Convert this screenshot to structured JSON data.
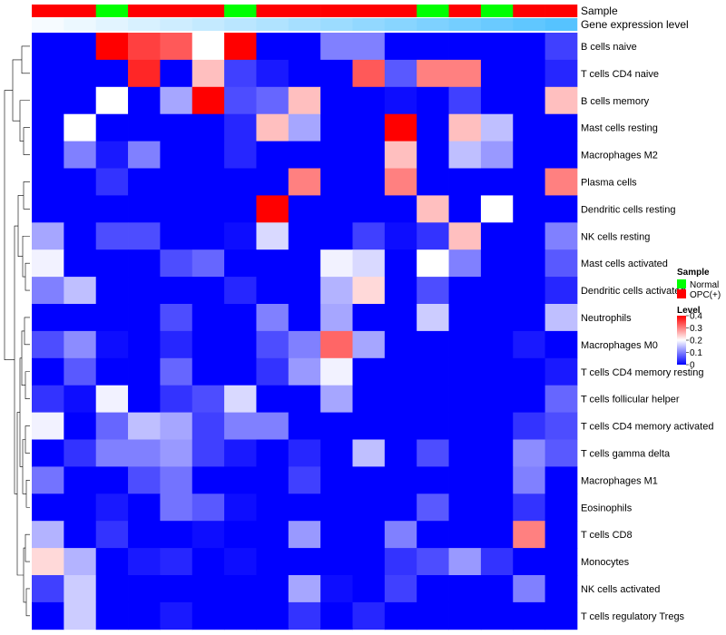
{
  "chart_data": {
    "type": "heatmap",
    "title": "",
    "annotation_labels": {
      "sample": "Sample",
      "gene_expression": "Gene expression level"
    },
    "sample_groups": [
      "OPC(+)",
      "OPC(+)",
      "Normal",
      "OPC(+)",
      "OPC(+)",
      "OPC(+)",
      "Normal",
      "OPC(+)",
      "OPC(+)",
      "OPC(+)",
      "OPC(+)",
      "OPC(+)",
      "Normal",
      "OPC(+)",
      "Normal",
      "OPC(+)",
      "OPC(+)"
    ],
    "gene_expression_level": [
      0.05,
      0.1,
      0.15,
      0.2,
      0.25,
      0.3,
      0.35,
      0.4,
      0.45,
      0.5,
      0.55,
      0.6,
      0.65,
      0.7,
      0.75,
      0.8,
      0.85
    ],
    "rows": [
      "B cells naive",
      "T cells CD4 naive",
      "B cells memory",
      "Mast cells resting",
      "Macrophages M2",
      "Plasma cells",
      "Dendritic cells resting",
      "NK cells resting",
      "Mast cells activated",
      "Dendritic cells activated",
      "Neutrophils",
      "Macrophages M0",
      "T cells CD4 memory resting",
      "T cells follicular helper",
      "T cells CD4 memory activated",
      "T cells gamma delta",
      "Macrophages M1",
      "Eosinophils",
      "T cells CD8",
      "Monocytes",
      "NK cells activated",
      "T cells regulatory  Tregs"
    ],
    "values": [
      [
        0,
        0,
        0.4,
        0.35,
        0.33,
        0.2,
        0.4,
        0,
        0,
        0.1,
        0.1,
        0,
        0,
        0,
        0,
        0,
        0.05
      ],
      [
        0,
        0,
        0,
        0.37,
        0,
        0.25,
        0.05,
        0.02,
        0,
        0,
        0.33,
        0.07,
        0.3,
        0.3,
        0,
        0,
        0.03
      ],
      [
        0,
        0,
        0.2,
        0,
        0.13,
        0.4,
        0.06,
        0.08,
        0.25,
        0,
        0,
        0.01,
        0,
        0.05,
        0,
        0,
        0.25
      ],
      [
        0,
        0.2,
        0,
        0,
        0,
        0,
        0.03,
        0.25,
        0.13,
        0,
        0,
        0.4,
        0,
        0.25,
        0.15,
        0,
        0
      ],
      [
        0,
        0.1,
        0.02,
        0.1,
        0,
        0,
        0.03,
        0,
        0,
        0,
        0,
        0.25,
        0,
        0.15,
        0.12,
        0,
        0
      ],
      [
        0,
        0,
        0.04,
        0,
        0,
        0,
        0,
        0,
        0.3,
        0,
        0,
        0.3,
        0,
        0,
        0,
        0,
        0.3
      ],
      [
        0,
        0,
        0,
        0,
        0,
        0,
        0,
        0.4,
        0,
        0,
        0,
        0,
        0.25,
        0,
        0.2,
        0,
        0
      ],
      [
        0.13,
        0,
        0.06,
        0.06,
        0,
        0,
        0.01,
        0.17,
        0,
        0,
        0.05,
        0.01,
        0.04,
        0.25,
        0,
        0,
        0.1
      ],
      [
        0.19,
        0,
        0,
        0,
        0.06,
        0.08,
        0,
        0,
        0,
        0.19,
        0.17,
        0,
        0.2,
        0.1,
        0,
        0,
        0.07
      ],
      [
        0.1,
        0.15,
        0,
        0,
        0,
        0,
        0.03,
        0,
        0,
        0.14,
        0.23,
        0,
        0.06,
        0,
        0,
        0,
        0.03
      ],
      [
        0,
        0,
        0,
        0,
        0.06,
        0,
        0,
        0.1,
        0,
        0.13,
        0,
        0,
        0.16,
        0,
        0,
        0,
        0.15
      ],
      [
        0.06,
        0.11,
        0.01,
        0,
        0.03,
        0,
        0,
        0.06,
        0.1,
        0.32,
        0.13,
        0,
        0,
        0,
        0,
        0.02,
        0
      ],
      [
        0,
        0.07,
        0,
        0,
        0.08,
        0,
        0,
        0.04,
        0.12,
        0.19,
        0,
        0,
        0,
        0,
        0,
        0,
        0.02
      ],
      [
        0.04,
        0.01,
        0.19,
        0,
        0.04,
        0.06,
        0.17,
        0,
        0,
        0.13,
        0,
        0,
        0,
        0,
        0,
        0,
        0.08
      ],
      [
        0.19,
        0,
        0.08,
        0.15,
        0.13,
        0.05,
        0.1,
        0.1,
        0,
        0,
        0,
        0,
        0,
        0,
        0,
        0.04,
        0.06
      ],
      [
        0,
        0.04,
        0.1,
        0.1,
        0.12,
        0.05,
        0.02,
        0,
        0.03,
        0,
        0.15,
        0,
        0.06,
        0,
        0,
        0.11,
        0.07
      ],
      [
        0.09,
        0,
        0,
        0.06,
        0.09,
        0,
        0,
        0,
        0.05,
        0,
        0,
        0,
        0,
        0,
        0,
        0.1,
        0
      ],
      [
        0,
        0,
        0.02,
        0,
        0.09,
        0.07,
        0.01,
        0,
        0,
        0,
        0,
        0,
        0.07,
        0,
        0,
        0.04,
        0
      ],
      [
        0.14,
        0,
        0.04,
        0,
        0,
        0.01,
        0,
        0,
        0.12,
        0,
        0,
        0.1,
        0,
        0,
        0,
        0.3,
        0
      ],
      [
        0.23,
        0.14,
        0,
        0.02,
        0.03,
        0,
        0.01,
        0,
        0,
        0,
        0,
        0.04,
        0.06,
        0.12,
        0.04,
        0,
        0
      ],
      [
        0.05,
        0.16,
        0,
        0,
        0,
        0,
        0,
        0,
        0.13,
        0.01,
        0,
        0.05,
        0,
        0,
        0,
        0.1,
        0
      ],
      [
        0,
        0.16,
        0,
        0,
        0.02,
        0,
        0,
        0,
        0.04,
        0,
        0.03,
        0,
        0,
        0,
        0,
        0,
        0
      ]
    ],
    "color_scale": {
      "low": "#0000ff",
      "mid": "#ffffff",
      "high": "#ff0000"
    },
    "ann_colors": {
      "Normal": "#00ff00",
      "OPC(+)": "#ff0000"
    },
    "expr_colors": [
      "#f6fbff",
      "#56c3ff"
    ],
    "legend": {
      "placement": "right",
      "sample_title": "Sample",
      "sample_entries": [
        "Normal",
        "OPC(+)"
      ],
      "level_title": "Level",
      "level_ticks": [
        "0.4",
        "0.3",
        "0.2",
        "0.1",
        "0"
      ],
      "level_tick_values": [
        0.4,
        0.3,
        0.2,
        0.1,
        0
      ]
    }
  }
}
